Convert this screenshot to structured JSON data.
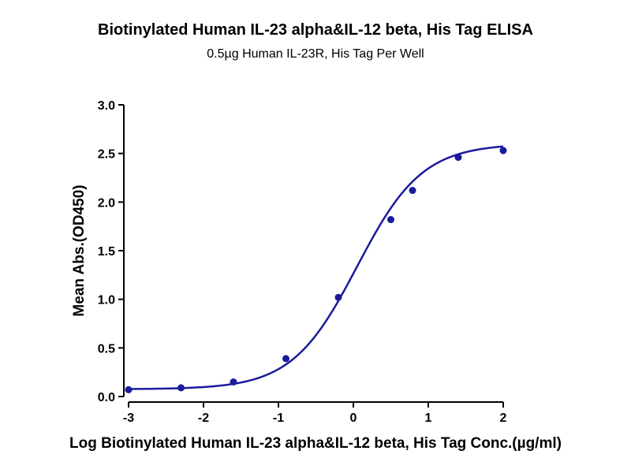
{
  "chart_data": {
    "type": "scatter",
    "title": "Biotinylated Human IL-23 alpha&IL-12 beta, His Tag ELISA",
    "subtitle": "0.5µg Human IL-23R, His Tag Per Well",
    "xlabel": "Log Biotinylated Human IL-23 alpha&IL-12 beta, His Tag Conc.(µg/ml)",
    "ylabel": "Mean Abs.(OD450)",
    "xlim": [
      -3,
      2
    ],
    "ylim": [
      0,
      3
    ],
    "xticks": [
      "-3",
      "-2",
      "-1",
      "0",
      "1",
      "2"
    ],
    "yticks": [
      "0.0",
      "0.5",
      "1.0",
      "1.5",
      "2.0",
      "2.5",
      "3.0"
    ],
    "grid": false,
    "legend": "none",
    "color": "#1a1a9c",
    "series": [
      {
        "x": [
          -3.0,
          -2.3,
          -1.6,
          -0.9,
          -0.2,
          0.5,
          0.79,
          1.4,
          2.0
        ],
        "y": [
          0.07,
          0.09,
          0.15,
          0.39,
          1.02,
          1.82,
          2.12,
          2.46,
          2.53
        ]
      }
    ],
    "fit": {
      "type": "4PL",
      "bottom": 0.075,
      "top": 2.6,
      "log_ec50": 0.05,
      "hill_slope": 1.0
    }
  }
}
